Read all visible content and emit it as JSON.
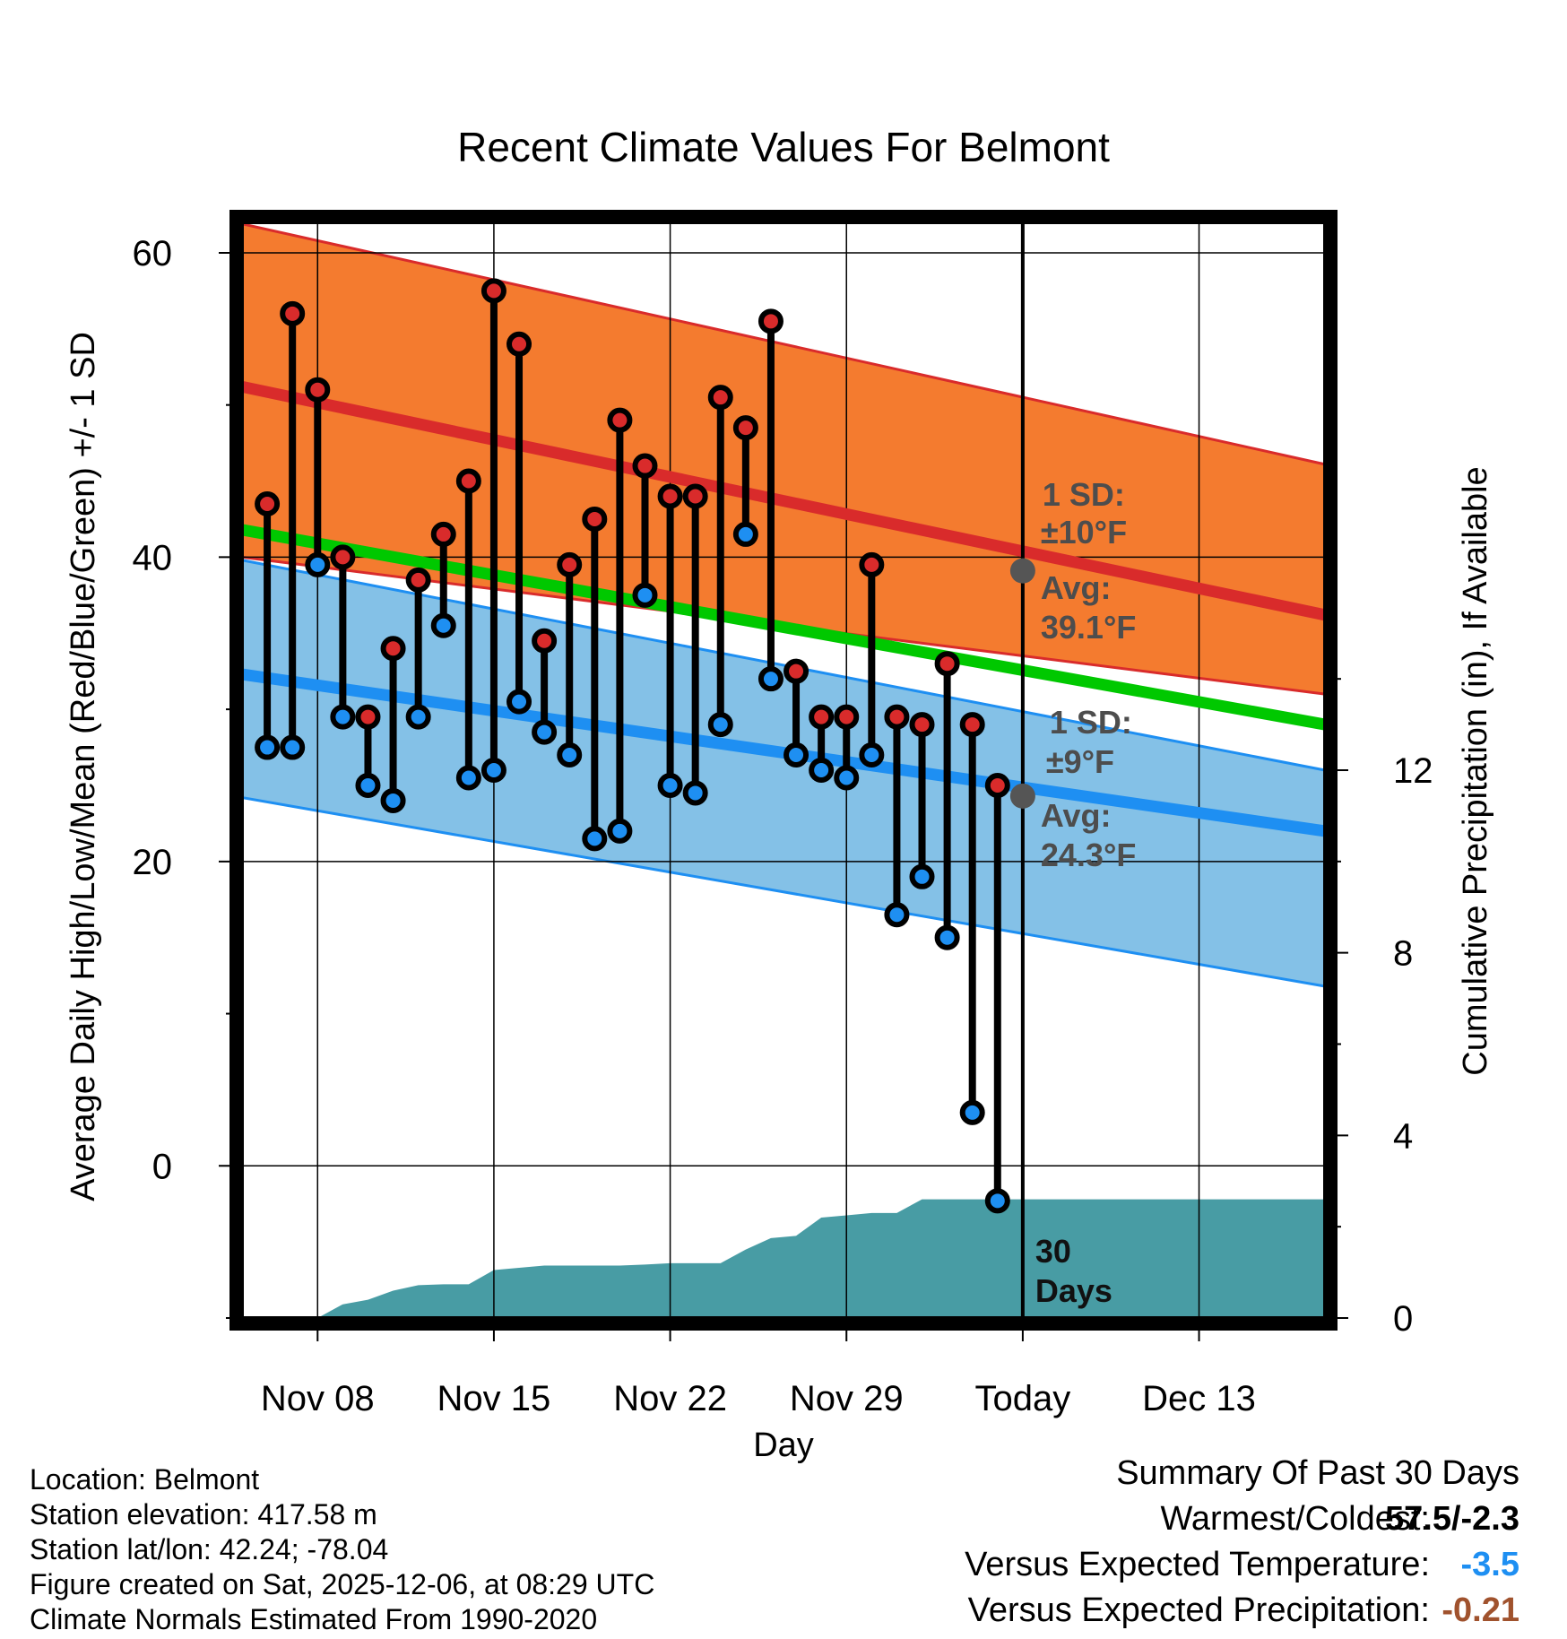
{
  "chart_data": {
    "type": "line",
    "title": "Recent Climate Values For Belmont",
    "xlabel": "Day",
    "ylabel": "Average Daily High/Low/Mean (Red/Blue/Green) +/- 1 SD",
    "ylabel_right": "Cumulative Precipitation (in), If Available",
    "x_range_days": [
      0,
      43
    ],
    "ylim": [
      -10,
      62
    ],
    "ylim_right": [
      0,
      24
    ],
    "left_ticks": [
      0,
      20,
      40,
      60
    ],
    "right_ticks": [
      0,
      4,
      8,
      12
    ],
    "x_ticks": [
      {
        "day": 3,
        "label": "Nov 08"
      },
      {
        "day": 10,
        "label": "Nov 15"
      },
      {
        "day": 17,
        "label": "Nov 22"
      },
      {
        "day": 24,
        "label": "Nov 29"
      },
      {
        "day": 31,
        "label": "Today"
      },
      {
        "day": 38,
        "label": "Dec 13"
      }
    ],
    "today_day": 31,
    "normals": {
      "high_avg": [
        51.2,
        36.2
      ],
      "high_upper": [
        61.9,
        46.1
      ],
      "high_lower": [
        40.0,
        31.0
      ],
      "low_avg": [
        32.3,
        22.0
      ],
      "low_upper": [
        39.8,
        26.0
      ],
      "low_lower": [
        24.2,
        11.8
      ],
      "mean_avg": [
        41.8,
        29.0
      ]
    },
    "series": [
      {
        "name": "High",
        "x": [
          1,
          2,
          3,
          4,
          5,
          6,
          7,
          8,
          9,
          10,
          11,
          12,
          13,
          14,
          15,
          16,
          17,
          18,
          19,
          20,
          21,
          22,
          23,
          24,
          25,
          26,
          27,
          28,
          29,
          30
        ],
        "values": [
          43.5,
          56.0,
          51.0,
          40.0,
          29.5,
          34.0,
          38.5,
          41.5,
          45.0,
          57.5,
          54.0,
          34.5,
          39.5,
          42.5,
          49.0,
          46.0,
          44.0,
          44.0,
          50.5,
          48.5,
          55.5,
          32.5,
          29.5,
          29.5,
          39.5,
          29.5,
          29.0,
          33.0,
          29.0,
          25.0
        ]
      },
      {
        "name": "Low",
        "x": [
          1,
          2,
          3,
          4,
          5,
          6,
          7,
          8,
          9,
          10,
          11,
          12,
          13,
          14,
          15,
          16,
          17,
          18,
          19,
          20,
          21,
          22,
          23,
          24,
          25,
          26,
          27,
          28,
          29,
          30
        ],
        "values": [
          27.5,
          27.5,
          39.5,
          29.5,
          25.0,
          24.0,
          29.5,
          35.5,
          25.5,
          26.0,
          30.5,
          28.5,
          27.0,
          21.5,
          22.0,
          37.5,
          25.0,
          24.5,
          29.0,
          41.5,
          32.0,
          27.0,
          26.0,
          25.5,
          27.0,
          16.5,
          19.0,
          15.0,
          3.5,
          -2.3
        ]
      }
    ],
    "precip_cumulative": {
      "x": [
        3,
        4,
        5,
        6,
        7,
        8,
        9,
        10,
        11,
        12,
        13,
        14,
        15,
        16,
        17,
        18,
        19,
        20,
        21,
        22,
        23,
        24,
        25,
        26,
        27,
        28,
        29,
        30,
        31,
        43
      ],
      "values": [
        0.0,
        0.3,
        0.4,
        0.6,
        0.72,
        0.74,
        0.74,
        1.05,
        1.1,
        1.15,
        1.15,
        1.15,
        1.15,
        1.17,
        1.2,
        1.2,
        1.2,
        1.5,
        1.75,
        1.8,
        2.2,
        2.25,
        2.3,
        2.3,
        2.6,
        2.6,
        2.6,
        2.6,
        2.6,
        2.6
      ]
    },
    "annotations": {
      "high_sd": "1 SD:",
      "high_sd_value": "±10°F",
      "high_avg_label": "Avg:",
      "high_avg_value": "39.1°F",
      "low_sd": "1 SD:",
      "low_sd_value": "±9°F",
      "low_avg_label": "Avg:",
      "low_avg_value": "24.3°F",
      "today_high_avg": 39.1,
      "today_low_avg": 24.3,
      "window_line1": "30",
      "window_line2": "Days"
    },
    "colors": {
      "high_band": "#f47b2f",
      "low_band": "#84c1e7",
      "overlap": "#9a1216",
      "high_line": "#d92b2b",
      "low_line": "#1e8ff2",
      "mean_line": "#00c800",
      "precip": "#489ca4",
      "high_marker": "#d92b2b",
      "low_marker": "#1e8ff2",
      "annotation": "#4d4d4d"
    }
  },
  "info": {
    "location": "Location: Belmont",
    "elevation": "Station elevation: 417.58 m",
    "latlon": "Station lat/lon: 42.24; -78.04",
    "created": "Figure created on Sat, 2025-12-06, at 08:29 UTC",
    "normals": "Climate Normals Estimated From 1990-2020"
  },
  "summary": {
    "title": "Summary Of Past 30 Days",
    "warm_cold_label": "Warmest/Coldest:",
    "warm_cold_value": "57.5/-2.3",
    "temp_label": "Versus Expected Temperature:",
    "temp_value": "-3.5",
    "temp_color": "#1e8ff2",
    "precip_label": "Versus Expected Precipitation:",
    "precip_value": "-0.21",
    "precip_color": "#a0522d"
  }
}
